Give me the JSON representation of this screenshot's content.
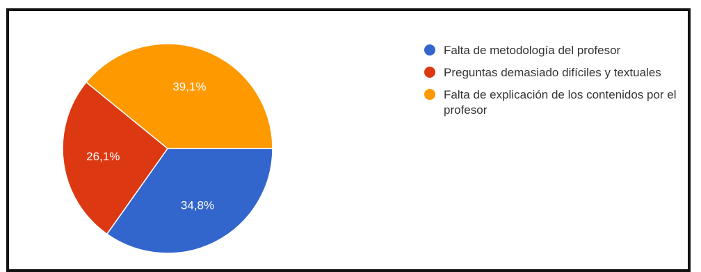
{
  "chart_data": {
    "type": "pie",
    "slices": [
      {
        "label": "Falta de metodología del profesor",
        "value": 34.8,
        "display": "34,8%",
        "color": "#3366cc"
      },
      {
        "label": "Preguntas demasiado difíciles y textuales",
        "value": 26.1,
        "display": "26,1%",
        "color": "#dc3912"
      },
      {
        "label": "Falta de explicación de los contenidos por el profesor",
        "value": 39.1,
        "display": "39,1%",
        "color": "#ff9900"
      }
    ],
    "legend_position": "right",
    "start_angle_deg": 0,
    "direction": "clockwise"
  }
}
